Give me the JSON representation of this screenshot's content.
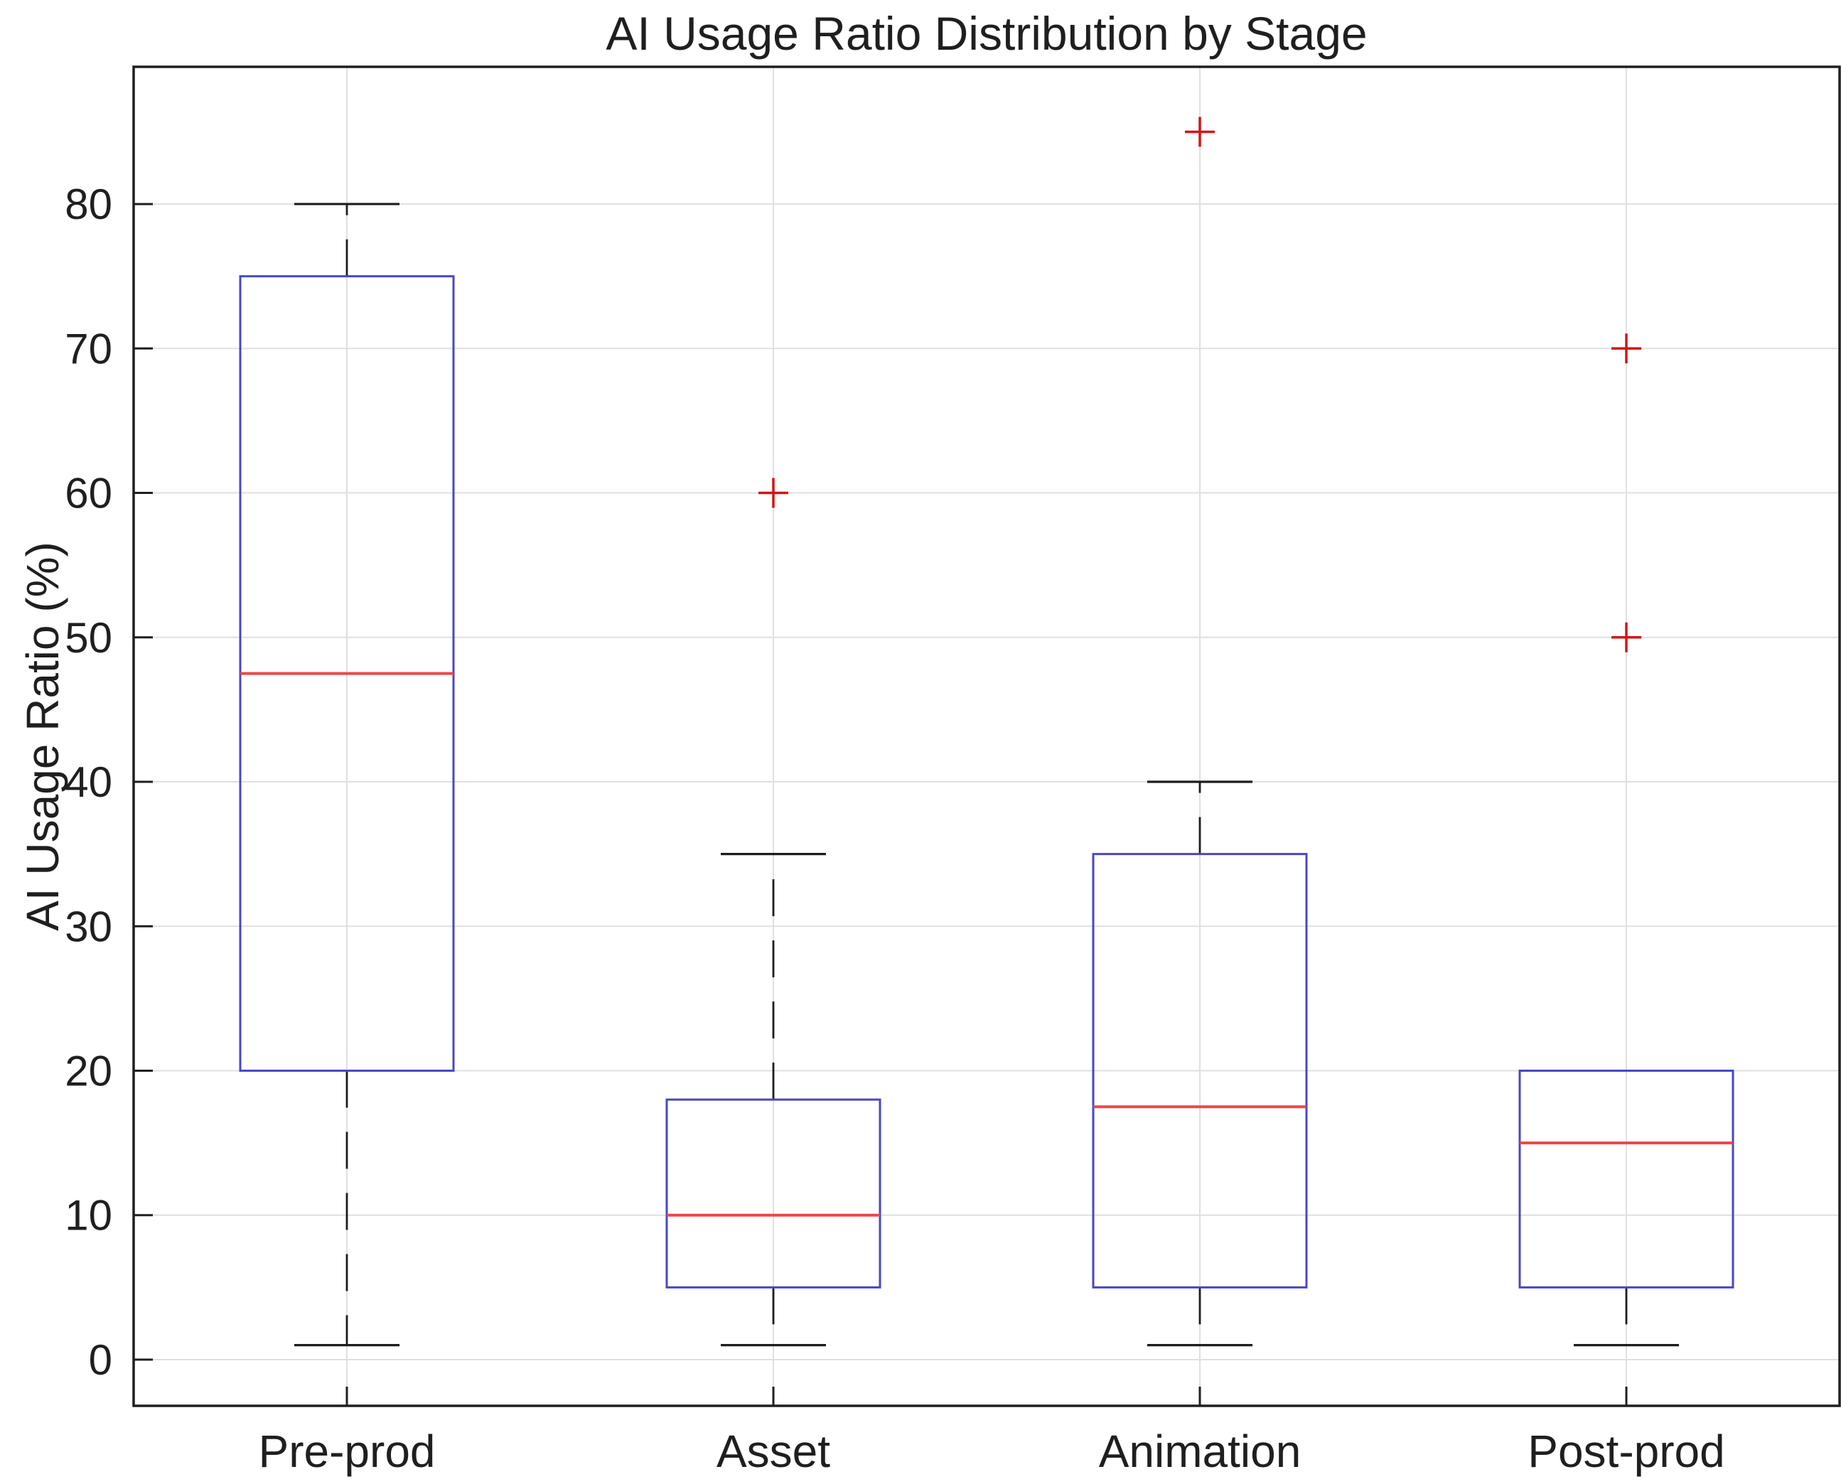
{
  "title": "AI Usage Ratio Distribution by Stage",
  "y_axis_label": "AI Usage Ratio (%)",
  "chart_data": {
    "type": "boxplot",
    "title": "AI Usage Ratio Distribution by Stage",
    "xlabel": "",
    "ylabel": "AI Usage Ratio (%)",
    "categories": [
      "Pre-prod",
      "Asset",
      "Animation",
      "Post-prod"
    ],
    "yticks": [
      0,
      10,
      20,
      30,
      40,
      50,
      60,
      70,
      80
    ],
    "ylim": [
      -3.2,
      89.5
    ],
    "grid": true,
    "legend": "none",
    "series": [
      {
        "name": "Pre-prod",
        "whisker_low": 1,
        "q1": 20,
        "median": 47.5,
        "q3": 75,
        "whisker_high": 80,
        "outliers": []
      },
      {
        "name": "Asset",
        "whisker_low": 1,
        "q1": 5,
        "median": 10,
        "q3": 18,
        "whisker_high": 35,
        "outliers": [
          60
        ]
      },
      {
        "name": "Animation",
        "whisker_low": 1,
        "q1": 5,
        "median": 17.5,
        "q3": 35,
        "whisker_high": 40,
        "outliers": [
          85
        ]
      },
      {
        "name": "Post-prod",
        "whisker_low": 1,
        "q1": 5,
        "median": 15,
        "q3": 20,
        "whisker_high": 20,
        "outliers": [
          50,
          70
        ]
      }
    ],
    "colors": {
      "box": "#4847c4",
      "median": "#ec4747",
      "whisker": "#1c1c1c",
      "cap": "#1c1c1c",
      "outlier": "#d41414",
      "grid": "#e0e0e0",
      "axis": "#1f1f1f",
      "text": "#1f1f1f",
      "background": "#ffffff"
    }
  }
}
